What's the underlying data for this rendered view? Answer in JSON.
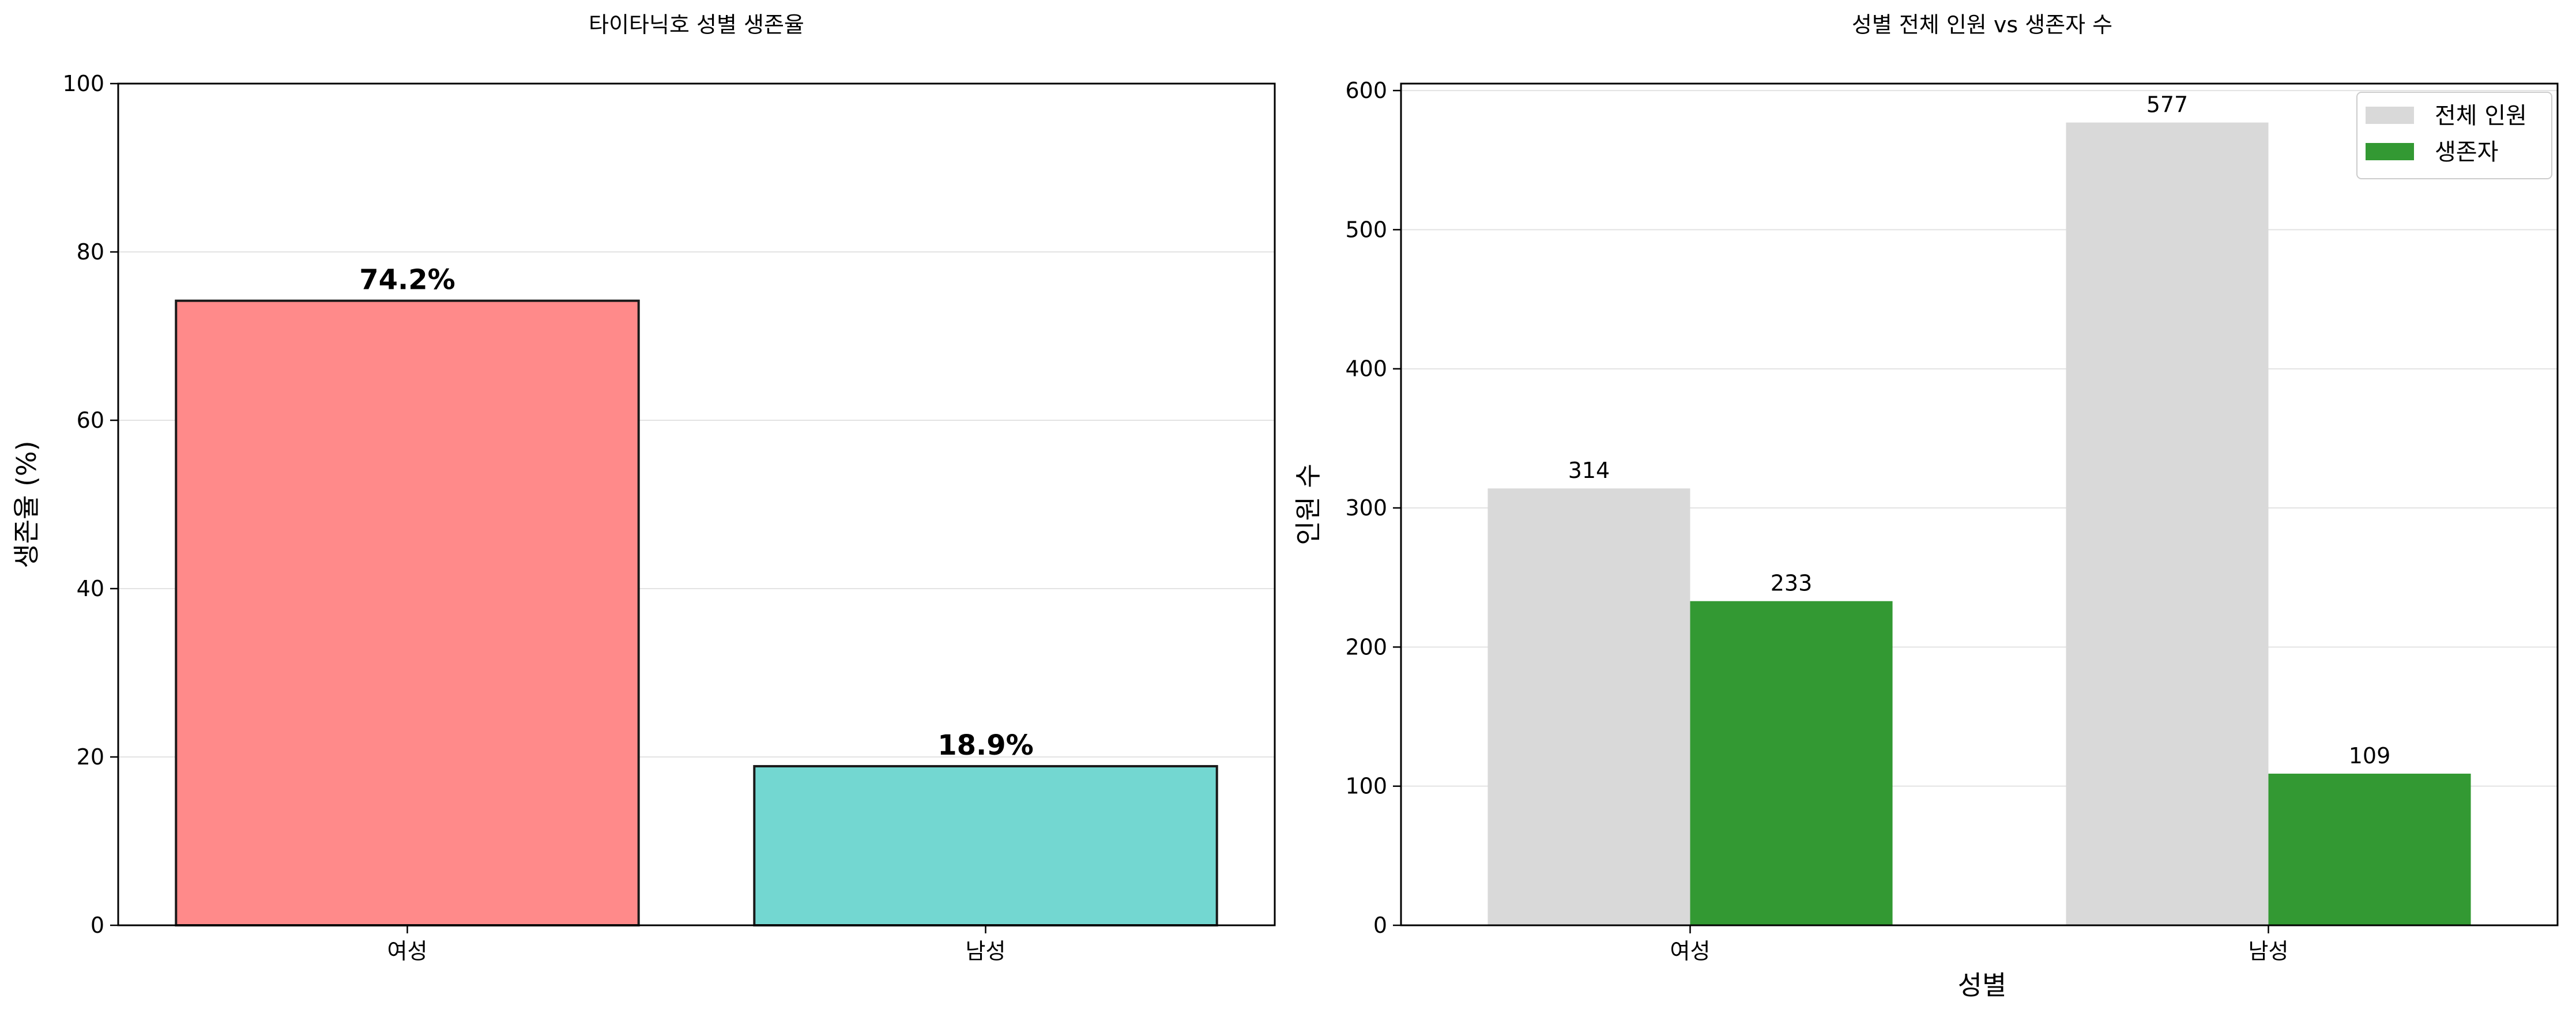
{
  "chart_data": [
    {
      "type": "bar",
      "title": "타이타닉호 성별 생존율",
      "xlabel": "",
      "ylabel": "생존율 (%)",
      "categories": [
        "여성",
        "남성"
      ],
      "values": [
        74.2,
        18.9
      ],
      "value_labels": [
        "74.2%",
        "18.9%"
      ],
      "colors": [
        "#ff8a8a",
        "#73d7d1"
      ],
      "edge_color": "#1a1a1a",
      "ylim": [
        0,
        100
      ],
      "yticks": [
        0,
        20,
        40,
        60,
        80,
        100
      ],
      "grid": "y",
      "legend": "none"
    },
    {
      "type": "bar",
      "title": "성별 전체 인원 vs 생존자 수",
      "xlabel": "성별",
      "ylabel": "인원 수",
      "categories": [
        "여성",
        "남성"
      ],
      "series": [
        {
          "name": "전체 인원",
          "values": [
            314,
            577
          ],
          "color": "#d9d9d9"
        },
        {
          "name": "생존자",
          "values": [
            233,
            109
          ],
          "color": "#339933"
        }
      ],
      "ylim": [
        0,
        605
      ],
      "yticks": [
        0,
        100,
        200,
        300,
        400,
        500,
        600
      ],
      "grid": "y",
      "legend": "top-right"
    }
  ]
}
